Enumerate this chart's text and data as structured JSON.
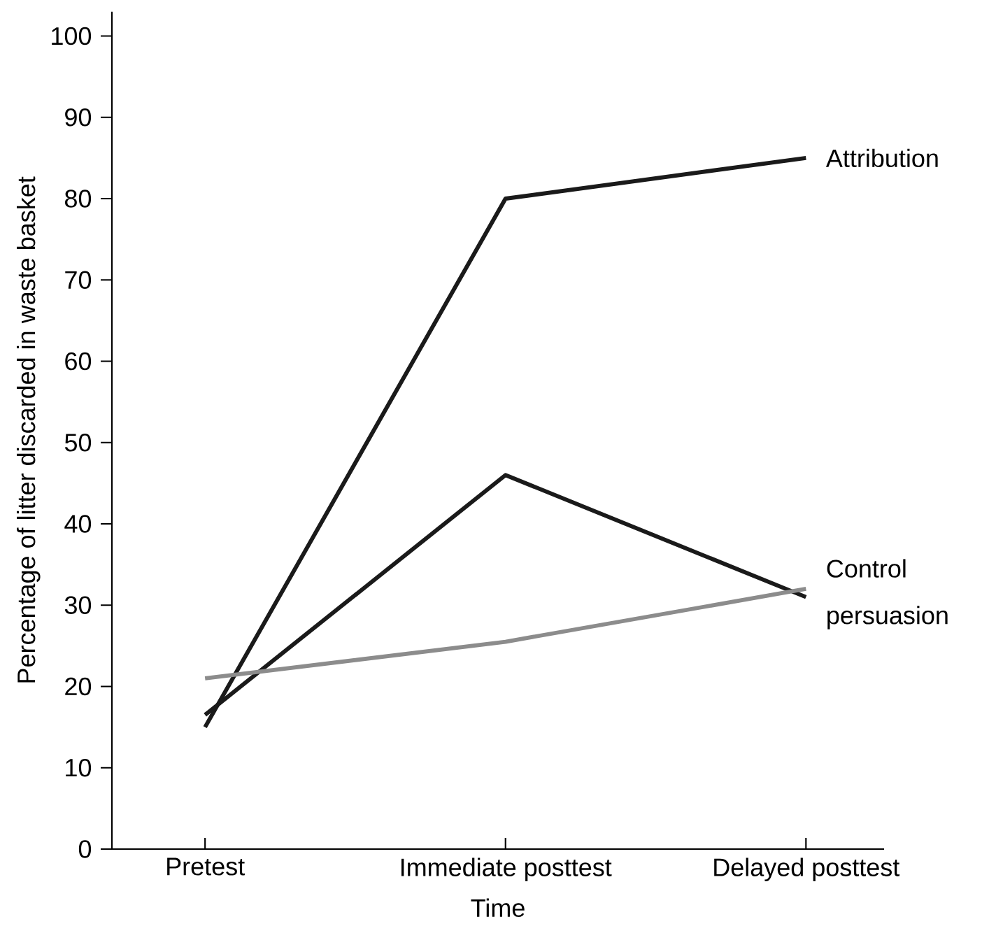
{
  "chart_data": {
    "type": "line",
    "xlabel": "Time",
    "ylabel": "Percentage of litter discarded in waste basket",
    "categories": [
      "Pretest",
      "Immediate posttest",
      "Delayed posttest"
    ],
    "series": [
      {
        "name": "Attribution",
        "color": "#1a1a1a",
        "values": [
          15,
          80,
          85
        ]
      },
      {
        "name": "persuasion",
        "color": "#1a1a1a",
        "values": [
          16.5,
          46,
          31
        ]
      },
      {
        "name": "Control",
        "color": "#8c8c8c",
        "values": [
          21,
          25.5,
          32
        ]
      }
    ],
    "ylim": [
      0,
      103
    ],
    "yticks": [
      0,
      10,
      20,
      30,
      40,
      50,
      60,
      70,
      80,
      90,
      100
    ],
    "grid": false,
    "legend": false,
    "marker": "none",
    "line_style": "solid"
  }
}
